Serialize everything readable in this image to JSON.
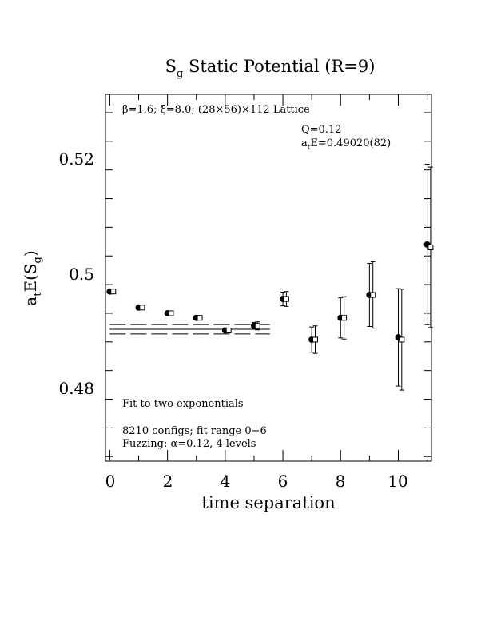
{
  "chart_data": {
    "type": "scatter",
    "title_main": "S",
    "title_sub": "g",
    "title_rest": " Static Potential (R=9)",
    "xlabel": "time separation",
    "ylabel_main": "a",
    "ylabel_sub1": "t",
    "ylabel_mid": "E(S",
    "ylabel_sub2": "g",
    "ylabel_end": ")",
    "xlim": [
      -0.15,
      11.15
    ],
    "ylim": [
      0.4672,
      0.5312
    ],
    "x_ticks": [
      0,
      2,
      4,
      6,
      8,
      10
    ],
    "x_tick_labels": [
      "0",
      "2",
      "4",
      "6",
      "8",
      "10"
    ],
    "y_ticks": [
      0.48,
      0.5,
      0.52
    ],
    "y_tick_labels": [
      "0.48",
      "0.5",
      "0.52"
    ],
    "grid": false,
    "annotations": {
      "lattice_beta": "β",
      "lattice_rest": "=1.6; ",
      "lattice_xi": "ξ",
      "lattice_rest2": "=8.0; (28×56)×112 Lattice",
      "q_value": "Q=0.12",
      "energy_a": "a",
      "energy_sub": "t",
      "energy_rest": "E=0.49020(82)",
      "fit_label": "Fit to two exponentials",
      "configs_label": "8210 configs; fit range 0−6",
      "fuzzing_a": "Fuzzing: ",
      "fuzzing_alpha": "α",
      "fuzzing_rest": "=0.12, 4 levels"
    },
    "fit": {
      "x_range": [
        0,
        5.55
      ],
      "center": 0.4902,
      "upper": 0.49102,
      "lower": 0.48938
    },
    "series": [
      {
        "marker": "filled-circle",
        "x": [
          0,
          1,
          2,
          3,
          4,
          5,
          6,
          7,
          8,
          9,
          10,
          11
        ],
        "y": [
          0.4968,
          0.494,
          0.493,
          0.4922,
          0.49,
          0.4908,
          0.4955,
          0.4884,
          0.4922,
          0.4962,
          0.4888,
          0.505
        ],
        "err": [
          0.0003,
          0.0003,
          0.0003,
          0.0004,
          0.0005,
          0.0006,
          0.0012,
          0.0022,
          0.0035,
          0.0055,
          0.0085,
          0.014
        ]
      },
      {
        "marker": "open-square",
        "x": [
          0.12,
          1.12,
          2.12,
          3.12,
          4.12,
          5.12,
          6.12,
          7.12,
          8.12,
          9.12,
          10.12,
          11.12
        ],
        "y": [
          0.4968,
          0.494,
          0.493,
          0.4922,
          0.49,
          0.4908,
          0.4955,
          0.4884,
          0.4922,
          0.4962,
          0.4884,
          0.5045
        ],
        "err": [
          0.0003,
          0.0003,
          0.0003,
          0.0004,
          0.0005,
          0.0007,
          0.0013,
          0.0024,
          0.0037,
          0.0058,
          0.0088,
          0.014
        ]
      }
    ]
  }
}
